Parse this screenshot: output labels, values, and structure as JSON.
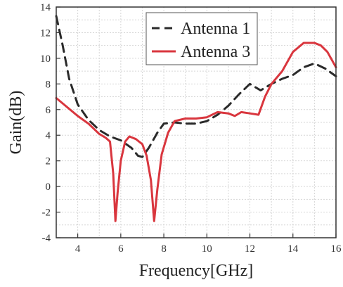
{
  "chart_data": {
    "type": "line",
    "title": "",
    "xlabel": "Frequency[GHz]",
    "ylabel": "Gain(dB)",
    "xlim": [
      3,
      16
    ],
    "ylim": [
      -4,
      14
    ],
    "x_ticks": [
      4,
      6,
      8,
      10,
      12,
      14,
      16
    ],
    "y_ticks": [
      -4,
      -2,
      0,
      2,
      4,
      6,
      8,
      10,
      12,
      14
    ],
    "grid": true,
    "legend_position": "top-right",
    "series": [
      {
        "name": "Antenna 1",
        "color": "#2a2a2a",
        "style": "dashed",
        "points": [
          [
            3.0,
            13.3
          ],
          [
            3.3,
            11.0
          ],
          [
            3.6,
            8.4
          ],
          [
            4.0,
            6.4
          ],
          [
            4.5,
            5.2
          ],
          [
            5.0,
            4.4
          ],
          [
            5.5,
            3.9
          ],
          [
            6.0,
            3.6
          ],
          [
            6.5,
            3.0
          ],
          [
            6.8,
            2.4
          ],
          [
            7.0,
            2.3
          ],
          [
            7.3,
            3.0
          ],
          [
            7.7,
            4.2
          ],
          [
            8.0,
            4.9
          ],
          [
            8.5,
            5.0
          ],
          [
            9.0,
            4.9
          ],
          [
            9.5,
            4.9
          ],
          [
            10.0,
            5.1
          ],
          [
            10.5,
            5.6
          ],
          [
            11.0,
            6.3
          ],
          [
            11.5,
            7.2
          ],
          [
            12.0,
            8.0
          ],
          [
            12.3,
            7.7
          ],
          [
            12.5,
            7.5
          ],
          [
            13.0,
            8.0
          ],
          [
            13.5,
            8.4
          ],
          [
            14.0,
            8.7
          ],
          [
            14.5,
            9.3
          ],
          [
            15.0,
            9.6
          ],
          [
            15.5,
            9.2
          ],
          [
            16.0,
            8.6
          ]
        ]
      },
      {
        "name": "Antenna 3",
        "color": "#d9363e",
        "style": "solid",
        "points": [
          [
            3.0,
            6.9
          ],
          [
            3.5,
            6.2
          ],
          [
            4.0,
            5.5
          ],
          [
            4.5,
            4.9
          ],
          [
            5.0,
            4.1
          ],
          [
            5.3,
            3.8
          ],
          [
            5.5,
            3.5
          ],
          [
            5.65,
            1.0
          ],
          [
            5.75,
            -2.7
          ],
          [
            5.85,
            -0.5
          ],
          [
            6.0,
            2.0
          ],
          [
            6.2,
            3.5
          ],
          [
            6.4,
            3.9
          ],
          [
            6.7,
            3.7
          ],
          [
            7.0,
            3.3
          ],
          [
            7.2,
            2.4
          ],
          [
            7.4,
            0.5
          ],
          [
            7.55,
            -2.7
          ],
          [
            7.7,
            -0.2
          ],
          [
            7.9,
            2.5
          ],
          [
            8.2,
            4.2
          ],
          [
            8.5,
            5.1
          ],
          [
            9.0,
            5.3
          ],
          [
            9.5,
            5.3
          ],
          [
            10.0,
            5.4
          ],
          [
            10.5,
            5.8
          ],
          [
            11.0,
            5.7
          ],
          [
            11.3,
            5.5
          ],
          [
            11.6,
            5.8
          ],
          [
            12.0,
            5.7
          ],
          [
            12.4,
            5.6
          ],
          [
            12.7,
            7.0
          ],
          [
            13.0,
            8.0
          ],
          [
            13.5,
            9.0
          ],
          [
            14.0,
            10.5
          ],
          [
            14.5,
            11.2
          ],
          [
            15.0,
            11.2
          ],
          [
            15.3,
            11.0
          ],
          [
            15.6,
            10.5
          ],
          [
            16.0,
            9.3
          ]
        ]
      }
    ]
  }
}
